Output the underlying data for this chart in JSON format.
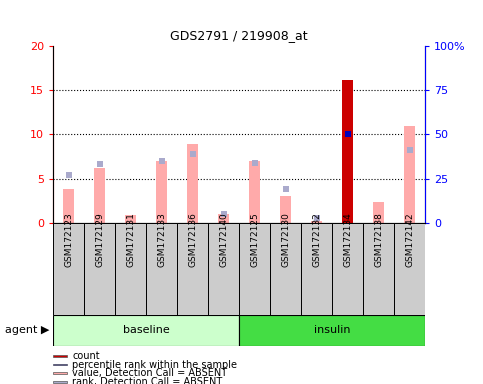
{
  "title": "GDS2791 / 219908_at",
  "samples": [
    "GSM172123",
    "GSM172129",
    "GSM172131",
    "GSM172133",
    "GSM172136",
    "GSM172140",
    "GSM172125",
    "GSM172130",
    "GSM172132",
    "GSM172134",
    "GSM172138",
    "GSM172142"
  ],
  "groups": [
    "baseline",
    "baseline",
    "baseline",
    "baseline",
    "baseline",
    "baseline",
    "insulin",
    "insulin",
    "insulin",
    "insulin",
    "insulin",
    "insulin"
  ],
  "value_absent": [
    3.8,
    6.2,
    0.9,
    7.0,
    8.9,
    1.0,
    7.0,
    3.0,
    0.2,
    null,
    2.4,
    11.0
  ],
  "rank_absent_pct": [
    27,
    33,
    null,
    35,
    39,
    5,
    34,
    19,
    2.5,
    null,
    null,
    41
  ],
  "count_present": [
    null,
    null,
    null,
    null,
    null,
    null,
    null,
    null,
    null,
    16.2,
    null,
    null
  ],
  "percentile_present_pct": [
    null,
    null,
    null,
    null,
    null,
    null,
    null,
    null,
    null,
    50.0,
    null,
    null
  ],
  "ylim_left": [
    0,
    20
  ],
  "ylim_right": [
    0,
    100
  ],
  "yticks_left": [
    0,
    5,
    10,
    15,
    20
  ],
  "yticks_right": [
    0,
    25,
    50,
    75,
    100
  ],
  "ytick_labels_right": [
    "0",
    "25",
    "50",
    "75",
    "100%"
  ],
  "ytick_labels_left": [
    "0",
    "5",
    "10",
    "15",
    "20"
  ],
  "color_count": "#cc0000",
  "color_percentile": "#0000bb",
  "color_value_absent": "#ffaaaa",
  "color_rank_absent": "#aaaacc",
  "baseline_color_light": "#ccffcc",
  "baseline_color": "#77ee77",
  "insulin_color": "#44dd44",
  "sample_box_color": "#cccccc",
  "agent_label": "agent ▶",
  "legend_items": [
    {
      "color": "#cc0000",
      "label": "count"
    },
    {
      "color": "#0000bb",
      "label": "percentile rank within the sample"
    },
    {
      "color": "#ffaaaa",
      "label": "value, Detection Call = ABSENT"
    },
    {
      "color": "#aaaacc",
      "label": "rank, Detection Call = ABSENT"
    }
  ]
}
